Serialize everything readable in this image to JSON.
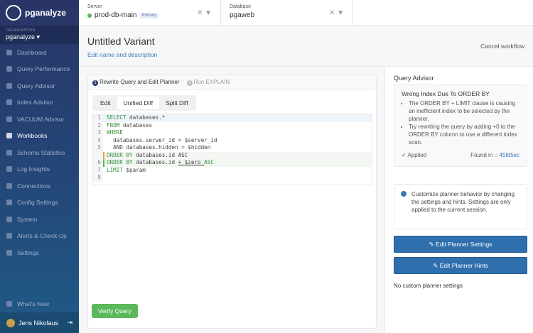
{
  "brand": "pganalyze",
  "org": {
    "label": "ORGANIZATION",
    "name": "pganalyze ▾"
  },
  "nav": [
    "Dashboard",
    "Query Performance",
    "Query Advisor",
    "Index Advisor",
    "VACUUM Advisor",
    "Workbooks",
    "Schema Statistics",
    "Log Insights",
    "Connections",
    "Config Settings",
    "System",
    "Alerts & Check-Up",
    "Settings"
  ],
  "whats_new": "What's New",
  "user": "Jens Nikolaus",
  "server": {
    "label": "Server",
    "value": "prod-db-main",
    "badge": "Primary"
  },
  "database": {
    "label": "Database",
    "value": "pgaweb"
  },
  "title": "Untitled Variant",
  "edit_link": "Edit name and description",
  "cancel": "Cancel workflow",
  "steps": [
    {
      "n": "1",
      "label": "Rewrite Query and Edit Planner"
    },
    {
      "n": "2",
      "label": "Run EXPLAIN"
    }
  ],
  "tabs": [
    "Edit",
    "Unified Diff",
    "Split Diff"
  ],
  "code": [
    {
      "n": "1",
      "kw": "SELECT",
      "rest": " databases.*",
      "type": "hl"
    },
    {
      "n": "2",
      "kw": "FROM",
      "rest": " databases",
      "type": ""
    },
    {
      "n": "3",
      "kw": "WHERE",
      "rest": "",
      "type": ""
    },
    {
      "n": "4",
      "kw": "",
      "rest": "  databases.server_id = $server_id",
      "type": ""
    },
    {
      "n": "5",
      "kw": "",
      "rest": "  AND databases.hidden = $hidden",
      "type": ""
    },
    {
      "n": "",
      "kw": "ORDER BY",
      "rest": " databases.id ASC",
      "type": "del"
    },
    {
      "n": "6",
      "kw": "ORDER BY",
      "rest": " databases.id ",
      "added": "+ $zero ",
      "rest2": "ASC",
      "type": "add"
    },
    {
      "n": "7",
      "kw": "LIMIT",
      "rest": " $param",
      "type": ""
    },
    {
      "n": "8",
      "kw": "",
      "rest": "",
      "type": ""
    }
  ],
  "verify": "Verify Query",
  "advisor": {
    "title": "Query Advisor",
    "heading": "Wrong Index Due To ORDER BY",
    "bullets": [
      "The ORDER BY + LIMIT clause is causing an inefficient index to be selected by the planner.",
      "Try rewriting the query by adding +0 to the ORDER BY column to use a different index scan."
    ],
    "applied": "✓ Applied",
    "found": "Found in",
    "commit": "45fd5ec"
  },
  "tip": "Customize planner behavior by changing the settings and hints. Settings are only applied to the current session.",
  "buttons": [
    "Edit Planner Settings",
    "Edit Planner Hints"
  ],
  "no_settings": "No custom planner settings"
}
